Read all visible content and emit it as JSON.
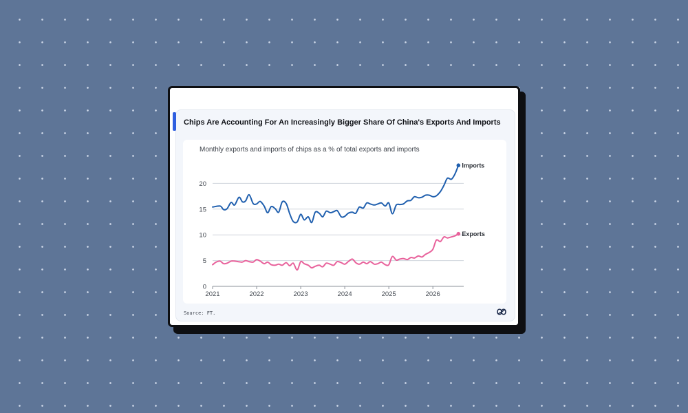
{
  "card": {
    "title": "Chips Are Accounting For An Increasingly Bigger Share Of China's Exports And Imports",
    "source": "Source: FT."
  },
  "colors": {
    "background": "#5e7597",
    "accent": "#2f5fe0",
    "imports_line": "#1f5fae",
    "exports_line": "#e8619b"
  },
  "logo_icon": "infinity-knot-logo",
  "chart_data": {
    "type": "line",
    "title": "Monthly exports and imports of chips as a % of total exports and imports",
    "xlabel": "",
    "ylabel": "",
    "xlim": [
      2021,
      2026.7
    ],
    "ylim": [
      0,
      25
    ],
    "x_ticks": [
      "2021",
      "2022",
      "2023",
      "2024",
      "2025",
      "2026"
    ],
    "y_ticks": [
      "0",
      "5",
      "10",
      "15",
      "20"
    ],
    "grid": true,
    "legend": "end-of-line labels",
    "series": [
      {
        "name": "Imports",
        "points": [
          [
            2021.0,
            15.4
          ],
          [
            2021.17,
            15.6
          ],
          [
            2021.25,
            14.9
          ],
          [
            2021.33,
            15.1
          ],
          [
            2021.42,
            16.3
          ],
          [
            2021.5,
            15.8
          ],
          [
            2021.6,
            17.3
          ],
          [
            2021.68,
            16.4
          ],
          [
            2021.75,
            16.6
          ],
          [
            2021.83,
            17.8
          ],
          [
            2021.92,
            16.1
          ],
          [
            2022.0,
            16.0
          ],
          [
            2022.08,
            16.5
          ],
          [
            2022.17,
            15.6
          ],
          [
            2022.25,
            14.3
          ],
          [
            2022.33,
            15.5
          ],
          [
            2022.42,
            15.1
          ],
          [
            2022.5,
            14.4
          ],
          [
            2022.58,
            16.4
          ],
          [
            2022.67,
            16.1
          ],
          [
            2022.75,
            14.1
          ],
          [
            2022.83,
            12.6
          ],
          [
            2022.92,
            12.5
          ],
          [
            2023.0,
            14.0
          ],
          [
            2023.08,
            12.9
          ],
          [
            2023.17,
            13.5
          ],
          [
            2023.25,
            12.4
          ],
          [
            2023.33,
            14.4
          ],
          [
            2023.42,
            14.2
          ],
          [
            2023.5,
            13.5
          ],
          [
            2023.58,
            14.6
          ],
          [
            2023.67,
            14.3
          ],
          [
            2023.75,
            14.5
          ],
          [
            2023.83,
            14.7
          ],
          [
            2023.92,
            13.5
          ],
          [
            2024.0,
            13.6
          ],
          [
            2024.08,
            14.2
          ],
          [
            2024.17,
            14.4
          ],
          [
            2024.25,
            14.2
          ],
          [
            2024.33,
            15.4
          ],
          [
            2024.42,
            15.2
          ],
          [
            2024.5,
            16.2
          ],
          [
            2024.58,
            16.0
          ],
          [
            2024.67,
            15.8
          ],
          [
            2024.75,
            16.0
          ],
          [
            2024.83,
            16.2
          ],
          [
            2024.92,
            15.6
          ],
          [
            2025.0,
            16.2
          ],
          [
            2025.08,
            14.1
          ],
          [
            2025.17,
            15.8
          ],
          [
            2025.25,
            15.9
          ],
          [
            2025.33,
            16.0
          ],
          [
            2025.42,
            16.6
          ],
          [
            2025.5,
            16.7
          ],
          [
            2025.58,
            17.4
          ],
          [
            2025.67,
            17.2
          ],
          [
            2025.75,
            17.3
          ],
          [
            2025.83,
            17.7
          ],
          [
            2025.92,
            17.7
          ],
          [
            2026.0,
            17.4
          ],
          [
            2026.08,
            17.6
          ],
          [
            2026.17,
            18.4
          ],
          [
            2026.25,
            19.6
          ],
          [
            2026.33,
            21.0
          ],
          [
            2026.42,
            20.8
          ],
          [
            2026.5,
            21.8
          ],
          [
            2026.58,
            23.5
          ]
        ]
      },
      {
        "name": "Exports",
        "points": [
          [
            2021.0,
            4.2
          ],
          [
            2021.08,
            4.7
          ],
          [
            2021.17,
            4.9
          ],
          [
            2021.25,
            4.4
          ],
          [
            2021.33,
            4.5
          ],
          [
            2021.42,
            4.9
          ],
          [
            2021.5,
            4.9
          ],
          [
            2021.58,
            4.8
          ],
          [
            2021.67,
            4.7
          ],
          [
            2021.75,
            5.0
          ],
          [
            2021.83,
            4.8
          ],
          [
            2021.92,
            4.7
          ],
          [
            2022.0,
            5.2
          ],
          [
            2022.08,
            4.9
          ],
          [
            2022.17,
            4.4
          ],
          [
            2022.25,
            4.7
          ],
          [
            2022.33,
            4.2
          ],
          [
            2022.42,
            4.1
          ],
          [
            2022.5,
            4.3
          ],
          [
            2022.58,
            4.1
          ],
          [
            2022.67,
            4.6
          ],
          [
            2022.75,
            4.0
          ],
          [
            2022.83,
            4.5
          ],
          [
            2022.92,
            3.2
          ],
          [
            2023.0,
            4.8
          ],
          [
            2023.08,
            4.4
          ],
          [
            2023.17,
            4.1
          ],
          [
            2023.25,
            3.6
          ],
          [
            2023.33,
            3.9
          ],
          [
            2023.42,
            4.1
          ],
          [
            2023.5,
            3.8
          ],
          [
            2023.58,
            4.5
          ],
          [
            2023.67,
            4.3
          ],
          [
            2023.75,
            4.1
          ],
          [
            2023.83,
            4.8
          ],
          [
            2023.92,
            4.6
          ],
          [
            2024.0,
            4.3
          ],
          [
            2024.08,
            4.8
          ],
          [
            2024.17,
            5.3
          ],
          [
            2024.25,
            4.6
          ],
          [
            2024.33,
            4.3
          ],
          [
            2024.42,
            4.7
          ],
          [
            2024.5,
            4.4
          ],
          [
            2024.58,
            4.8
          ],
          [
            2024.67,
            4.3
          ],
          [
            2024.75,
            4.4
          ],
          [
            2024.83,
            4.7
          ],
          [
            2024.92,
            4.2
          ],
          [
            2025.0,
            4.2
          ],
          [
            2025.08,
            5.8
          ],
          [
            2025.17,
            5.1
          ],
          [
            2025.25,
            5.3
          ],
          [
            2025.33,
            5.4
          ],
          [
            2025.42,
            5.2
          ],
          [
            2025.5,
            5.6
          ],
          [
            2025.58,
            5.5
          ],
          [
            2025.67,
            5.9
          ],
          [
            2025.75,
            5.7
          ],
          [
            2025.83,
            6.2
          ],
          [
            2025.92,
            6.6
          ],
          [
            2026.0,
            7.2
          ],
          [
            2026.08,
            9.0
          ],
          [
            2026.17,
            8.7
          ],
          [
            2026.25,
            9.6
          ],
          [
            2026.33,
            9.4
          ],
          [
            2026.42,
            9.6
          ],
          [
            2026.5,
            9.8
          ],
          [
            2026.58,
            10.2
          ]
        ]
      }
    ]
  }
}
